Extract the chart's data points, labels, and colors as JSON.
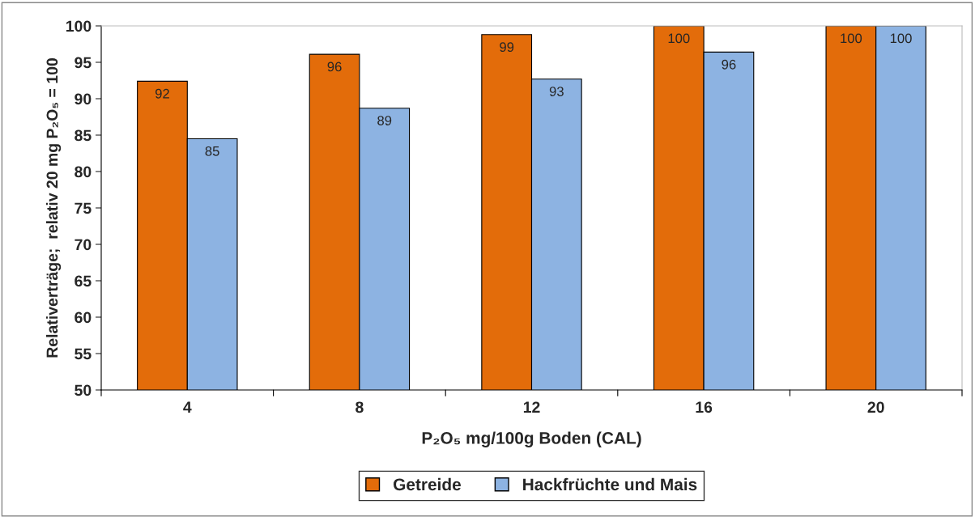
{
  "chart_data": {
    "type": "bar",
    "xlabel": "P₂O₅ mg/100g Boden (CAL)",
    "ylabel": "Relativerträge;  relativ 20 mg P₂O₅ = 100",
    "categories": [
      "4",
      "8",
      "12",
      "16",
      "20"
    ],
    "series": [
      {
        "name": "Getreide",
        "color": "#e36c0a",
        "values": [
          92.4,
          96.1,
          98.8,
          100,
          100
        ],
        "value_labels": [
          "92",
          "96",
          "99",
          "100",
          "100"
        ]
      },
      {
        "name": "Hackfrüchte und Mais",
        "color": "#8db3e2",
        "values": [
          84.5,
          88.7,
          92.7,
          96.4,
          100
        ],
        "value_labels": [
          "85",
          "89",
          "93",
          "96",
          "100"
        ]
      }
    ],
    "ylim": [
      50,
      100
    ],
    "yticks": [
      50,
      55,
      60,
      65,
      70,
      75,
      80,
      85,
      90,
      95,
      100
    ],
    "grid": false,
    "legend": "bottom"
  }
}
